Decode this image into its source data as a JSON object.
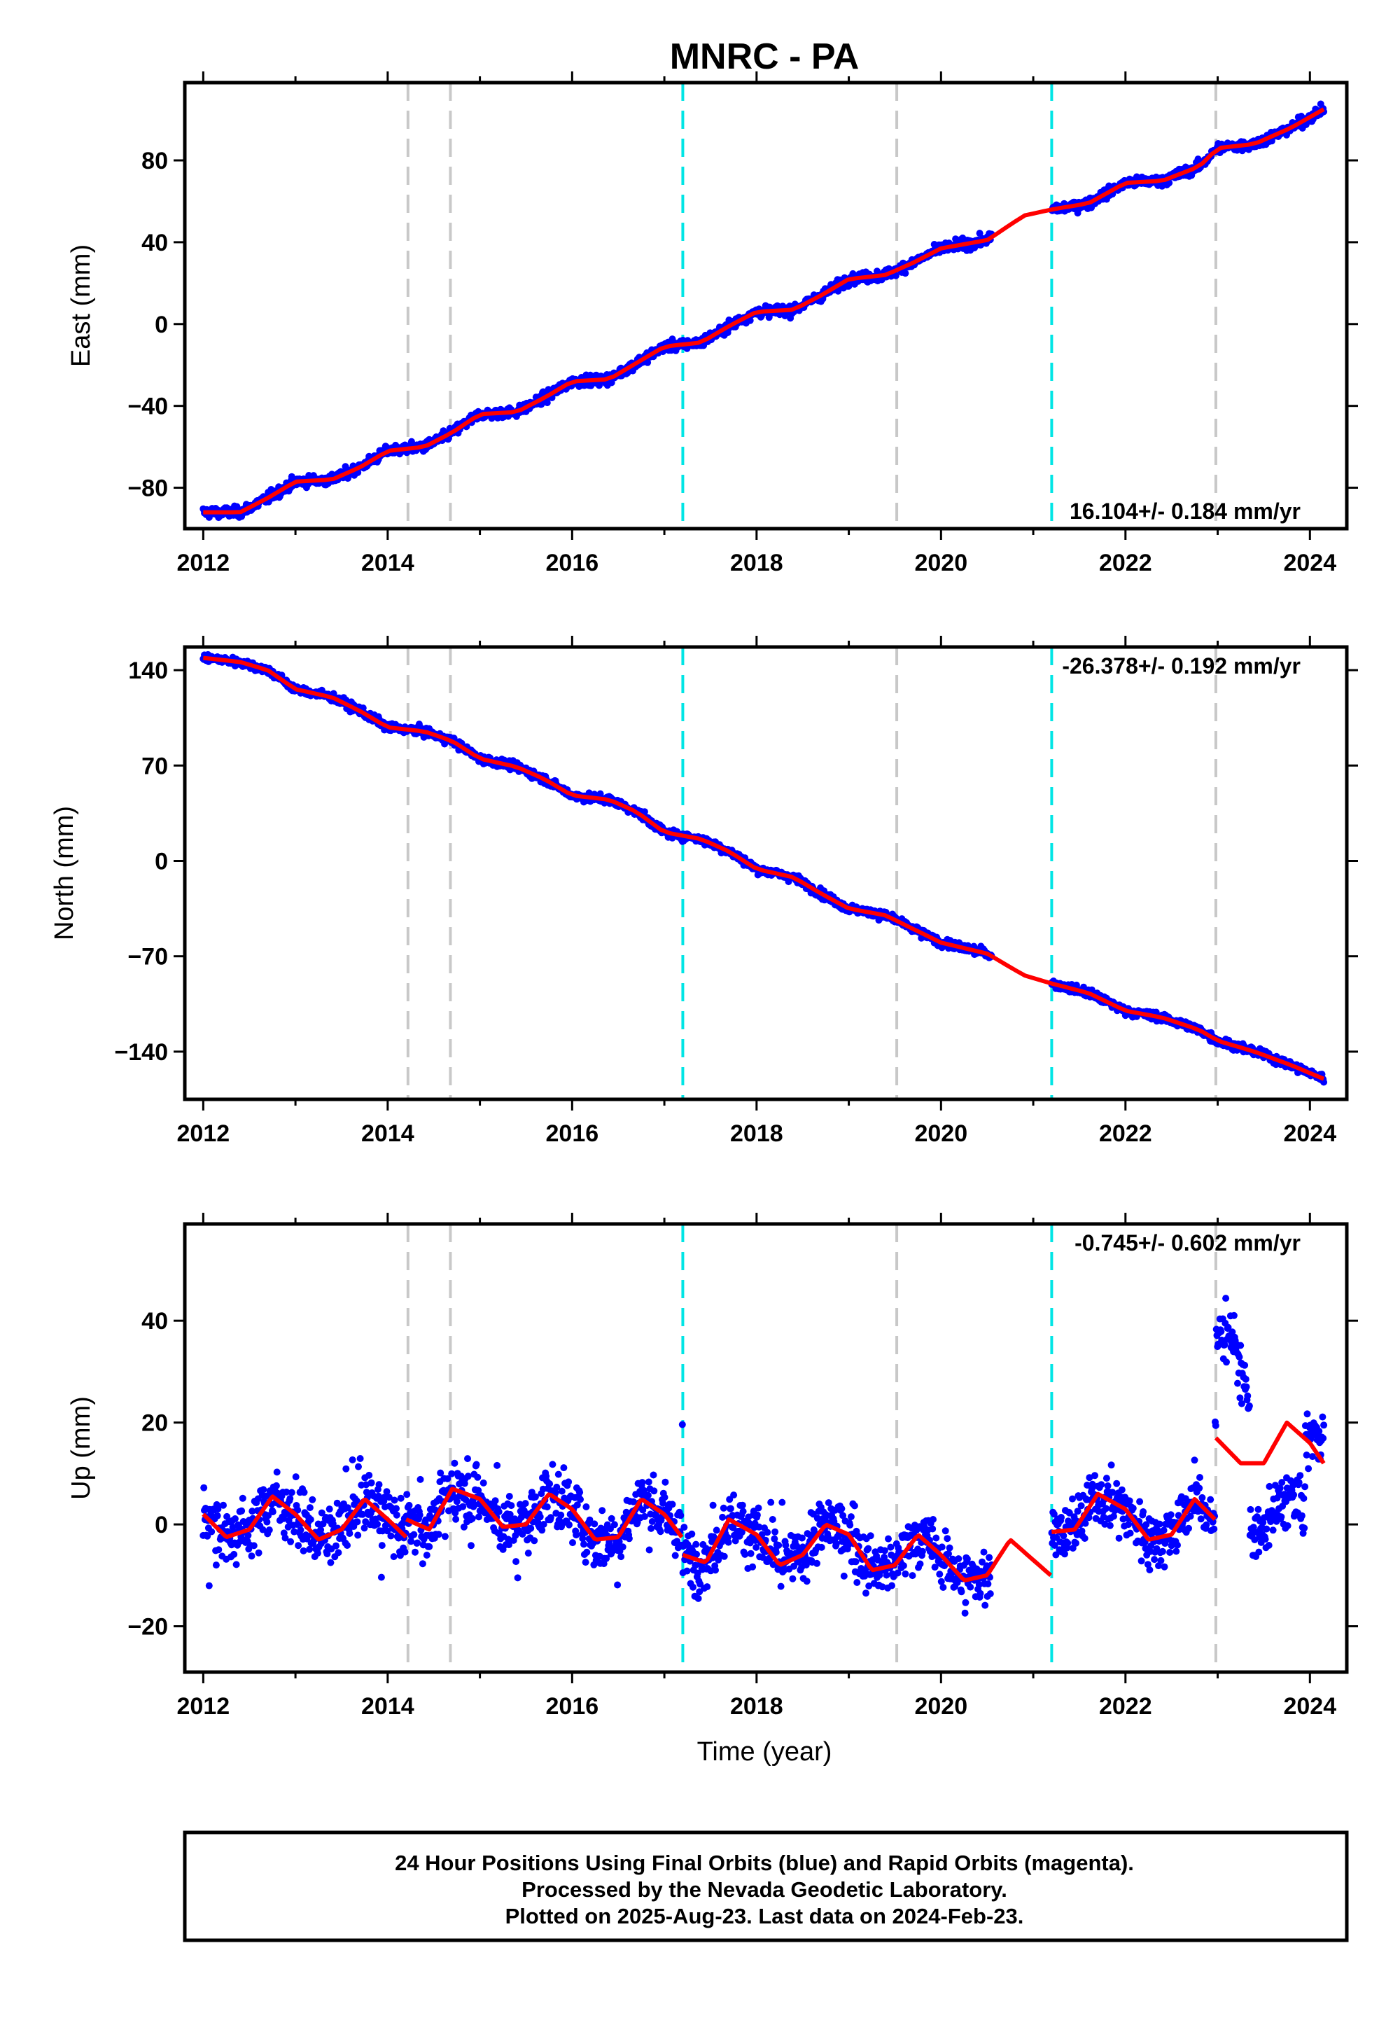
{
  "title": "MNRC - PA",
  "colors": {
    "final": "#0000ff",
    "fit": "#ff0000",
    "equipment_line": "#c8c8c8",
    "earthquake_line": "#00e5e5"
  },
  "x_axis": {
    "label": "Time (year)",
    "range": [
      2011.8,
      2024.4
    ],
    "ticks": [
      2012,
      2014,
      2016,
      2018,
      2020,
      2022,
      2024
    ],
    "tick_labels": [
      "2012",
      "2014",
      "2016",
      "2018",
      "2020",
      "2022",
      "2024"
    ]
  },
  "vertical_lines": {
    "equipment": [
      2014.22,
      2014.68,
      2019.52,
      2022.98
    ],
    "earthquake": [
      2017.2,
      2021.2
    ]
  },
  "data_gap": [
    2020.55,
    2021.2
  ],
  "chart_data": [
    {
      "type": "scatter",
      "component": "east",
      "ylabel": "East (mm)",
      "ylim": [
        -100,
        118
      ],
      "yticks": [
        -80,
        -40,
        0,
        40,
        80
      ],
      "ytick_labels": [
        "−80",
        "−40",
        "0",
        "40",
        "80"
      ],
      "rate_text": "16.104+/- 0.184 mm/yr",
      "rate_position": "bottom-right",
      "scatter_mm": 1.8,
      "fit": {
        "x": [
          2012.0,
          2012.4,
          2012.7,
          2013.0,
          2013.4,
          2013.7,
          2014.0,
          2014.4,
          2014.7,
          2015.0,
          2015.4,
          2015.7,
          2016.0,
          2016.4,
          2016.7,
          2017.0,
          2017.4,
          2017.7,
          2018.0,
          2018.4,
          2018.7,
          2019.0,
          2019.4,
          2019.7,
          2020.0,
          2020.5,
          2020.9,
          2021.2,
          2021.6,
          2022.0,
          2022.4,
          2022.8,
          2023.0,
          2023.4,
          2023.8,
          2024.15
        ],
        "y": [
          -92,
          -92,
          -85,
          -77,
          -76,
          -70,
          -62,
          -60,
          -53,
          -44,
          -43,
          -36,
          -28,
          -27,
          -19,
          -11,
          -9,
          -1,
          6,
          7,
          14,
          22,
          24,
          30,
          37,
          41,
          53,
          56,
          59,
          69,
          70,
          77,
          86,
          88,
          96,
          105
        ]
      }
    },
    {
      "type": "scatter",
      "component": "north",
      "ylabel": "North (mm)",
      "ylim": [
        -175,
        157
      ],
      "yticks": [
        -140,
        -70,
        0,
        70,
        140
      ],
      "ytick_labels": [
        "−140",
        "−70",
        "0",
        "70",
        "140"
      ],
      "rate_text": "-26.378+/- 0.192 mm/yr",
      "rate_position": "top-right",
      "scatter_mm": 2.2,
      "fit": {
        "x": [
          2012.0,
          2012.4,
          2012.7,
          2013.0,
          2013.4,
          2013.7,
          2014.0,
          2014.4,
          2014.7,
          2015.0,
          2015.4,
          2015.7,
          2016.0,
          2016.4,
          2016.7,
          2017.0,
          2017.4,
          2017.7,
          2018.0,
          2018.4,
          2018.7,
          2019.0,
          2019.4,
          2019.7,
          2020.0,
          2020.5,
          2020.9,
          2021.2,
          2021.6,
          2022.0,
          2022.4,
          2022.8,
          2023.0,
          2023.4,
          2023.8,
          2024.15
        ],
        "y": [
          149,
          146,
          140,
          126,
          120,
          110,
          98,
          95,
          88,
          75,
          69,
          60,
          48,
          45,
          36,
          21,
          16,
          7,
          -6,
          -12,
          -24,
          -35,
          -40,
          -50,
          -60,
          -68,
          -84,
          -90,
          -97,
          -110,
          -115,
          -124,
          -132,
          -140,
          -150,
          -160
        ]
      }
    },
    {
      "type": "scatter",
      "component": "up",
      "ylabel": "Up (mm)",
      "ylim": [
        -29,
        59
      ],
      "yticks": [
        -20,
        0,
        20,
        40
      ],
      "ytick_labels": [
        "−20",
        "0",
        "20",
        "40"
      ],
      "rate_text": "-0.745+/- 0.602 mm/yr",
      "rate_position": "top-right",
      "scatter_mm": 4.5,
      "fit": {
        "segments": [
          {
            "x": [
              2012.0,
              2012.25,
              2012.5,
              2012.75,
              2013.0,
              2013.25,
              2013.5,
              2013.75,
              2014.0,
              2014.2
            ],
            "y": [
              2,
              -2.5,
              -1,
              5.5,
              2,
              -3,
              -1,
              5,
              1,
              -2.5
            ]
          },
          {
            "x": [
              2014.2,
              2014.45,
              2014.7,
              2015.0,
              2015.25,
              2015.5,
              2015.75,
              2016.0,
              2016.25,
              2016.5,
              2016.75,
              2017.0,
              2017.19
            ],
            "y": [
              1,
              -1,
              7,
              5,
              -0.5,
              0,
              6,
              3,
              -3,
              -2.5,
              5,
              2,
              -2.5
            ]
          },
          {
            "x": [
              2017.2,
              2017.45,
              2017.7,
              2018.0,
              2018.25,
              2018.5,
              2018.75,
              2019.0,
              2019.25,
              2019.5,
              2019.75,
              2020.0,
              2020.25,
              2020.5,
              2020.75,
              2021.0,
              2021.19
            ],
            "y": [
              -6,
              -7.5,
              1,
              -2,
              -8,
              -6,
              0,
              -2,
              -9,
              -8,
              -2,
              -6,
              -11,
              -10,
              -3,
              -7,
              -10
            ]
          },
          {
            "x": [
              2021.2,
              2021.45,
              2021.7,
              2022.0,
              2022.25,
              2022.5,
              2022.75,
              2022.97
            ],
            "y": [
              -1.5,
              -1,
              6,
              3,
              -3,
              -2,
              5,
              1
            ]
          },
          {
            "x": [
              2022.98,
              2023.25,
              2023.5,
              2023.75,
              2024.0,
              2024.15
            ],
            "y": [
              17,
              12,
              12,
              20,
              16,
              12
            ]
          }
        ],
        "seasonal_amplitude_mm": 5,
        "scatter_sd_mm": 4
      }
    }
  ],
  "footer": {
    "lines": [
      "24 Hour Positions Using Final Orbits (blue) and Rapid Orbits (magenta).",
      "Processed by the Nevada Geodetic Laboratory.",
      "Plotted on 2025-Aug-23. Last data on 2024-Feb-23."
    ]
  }
}
